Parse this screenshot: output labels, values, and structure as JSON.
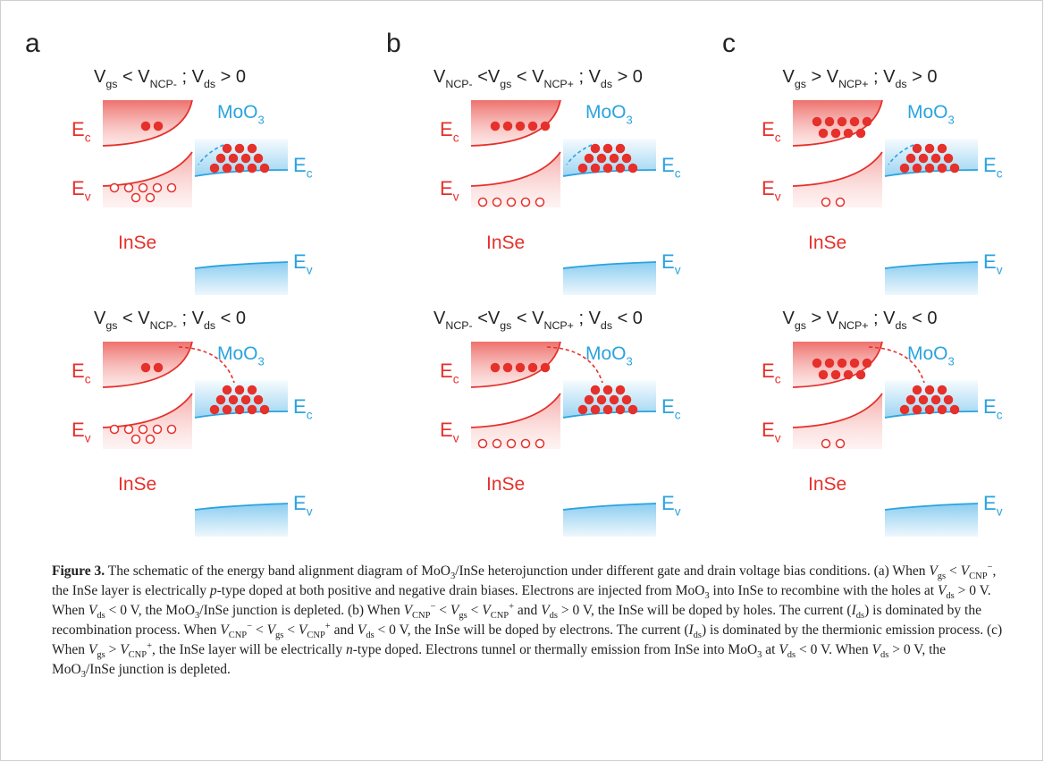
{
  "panels": [
    {
      "letter": "a",
      "diagrams": [
        {
          "condition": [
            {
              "text": "V"
            },
            {
              "sub": "gs"
            },
            {
              "text": " < V"
            },
            {
              "sub": "NCP-"
            },
            {
              "text": " ; V"
            },
            {
              "sub": "ds"
            },
            {
              "text": " > 0"
            }
          ]
        },
        {
          "condition": [
            {
              "text": "V"
            },
            {
              "sub": "gs"
            },
            {
              "text": " < V"
            },
            {
              "sub": "NCP-"
            },
            {
              "text": " ; V"
            },
            {
              "sub": "ds"
            },
            {
              "text": " < 0"
            }
          ]
        }
      ]
    },
    {
      "letter": "b",
      "diagrams": [
        {
          "condition": [
            {
              "text": "V"
            },
            {
              "sub": "NCP-"
            },
            {
              "text": " <V"
            },
            {
              "sub": "gs"
            },
            {
              "text": " < V"
            },
            {
              "sub": "NCP+"
            },
            {
              "text": " ; V"
            },
            {
              "sub": "ds"
            },
            {
              "text": " > 0"
            }
          ]
        },
        {
          "condition": [
            {
              "text": "V"
            },
            {
              "sub": "NCP-"
            },
            {
              "text": " <V"
            },
            {
              "sub": "gs"
            },
            {
              "text": " < V"
            },
            {
              "sub": "NCP+"
            },
            {
              "text": " ; V"
            },
            {
              "sub": "ds"
            },
            {
              "text": " < 0"
            }
          ]
        }
      ]
    },
    {
      "letter": "c",
      "diagrams": [
        {
          "condition": [
            {
              "text": "V"
            },
            {
              "sub": "gs"
            },
            {
              "text": " > V"
            },
            {
              "sub": "NCP+"
            },
            {
              "text": " ; V"
            },
            {
              "sub": "ds"
            },
            {
              "text": " > 0"
            }
          ]
        },
        {
          "condition": [
            {
              "text": "V"
            },
            {
              "sub": "gs"
            },
            {
              "text": " > V"
            },
            {
              "sub": "NCP+"
            },
            {
              "text": " ; V"
            },
            {
              "sub": "ds"
            },
            {
              "text": " < 0"
            }
          ]
        }
      ]
    }
  ],
  "band_labels": {
    "ec": [
      "E",
      "c"
    ],
    "ev": [
      "E",
      "v"
    ],
    "moo3": [
      "MoO",
      "3"
    ],
    "inse": "InSe"
  },
  "caption": {
    "runs": [
      {
        "text": "Figure 3.",
        "style": "bold"
      },
      {
        "text": " The schematic of the energy band alignment diagram of MoO"
      },
      {
        "text": "3",
        "style": "sub"
      },
      {
        "text": "/InSe heterojunction under different gate and drain voltage bias conditions. (a) When "
      },
      {
        "text": "V",
        "style": "italic"
      },
      {
        "text": "gs",
        "style": "sub"
      },
      {
        "text": " < "
      },
      {
        "text": "V",
        "style": "italic"
      },
      {
        "text": "CNP",
        "style": "sub"
      },
      {
        "text": "−",
        "style": "sup"
      },
      {
        "text": ", the InSe layer is electrically "
      },
      {
        "text": "p",
        "style": "italic"
      },
      {
        "text": "-type doped at both positive and negative drain biases. Electrons are injected from MoO"
      },
      {
        "text": "3",
        "style": "sub"
      },
      {
        "text": " into InSe to recombine with the holes at "
      },
      {
        "text": "V",
        "style": "italic"
      },
      {
        "text": "ds",
        "style": "sub"
      },
      {
        "text": " > 0 V. When "
      },
      {
        "text": "V",
        "style": "italic"
      },
      {
        "text": "ds",
        "style": "sub"
      },
      {
        "text": " < 0 V, the MoO"
      },
      {
        "text": "3",
        "style": "sub"
      },
      {
        "text": "/InSe junction is depleted. (b) When "
      },
      {
        "text": "V",
        "style": "italic"
      },
      {
        "text": "CNP",
        "style": "sub"
      },
      {
        "text": "−",
        "style": "sup"
      },
      {
        "text": " < "
      },
      {
        "text": "V",
        "style": "italic"
      },
      {
        "text": "gs",
        "style": "sub"
      },
      {
        "text": " < "
      },
      {
        "text": "V",
        "style": "italic"
      },
      {
        "text": "CNP",
        "style": "sub"
      },
      {
        "text": "+",
        "style": "sup"
      },
      {
        "text": " and "
      },
      {
        "text": "V",
        "style": "italic"
      },
      {
        "text": "ds",
        "style": "sub"
      },
      {
        "text": " > 0 V, the InSe will be doped by holes. The current ("
      },
      {
        "text": "I",
        "style": "italic"
      },
      {
        "text": "ds",
        "style": "sub"
      },
      {
        "text": ") is dominated by the recombination process. When "
      },
      {
        "text": "V",
        "style": "italic"
      },
      {
        "text": "CNP",
        "style": "sub"
      },
      {
        "text": "−",
        "style": "sup"
      },
      {
        "text": " < "
      },
      {
        "text": "V",
        "style": "italic"
      },
      {
        "text": "gs",
        "style": "sub"
      },
      {
        "text": " < "
      },
      {
        "text": "V",
        "style": "italic"
      },
      {
        "text": "CNP",
        "style": "sub"
      },
      {
        "text": "+",
        "style": "sup"
      },
      {
        "text": " and "
      },
      {
        "text": "V",
        "style": "italic"
      },
      {
        "text": "ds",
        "style": "sub"
      },
      {
        "text": " < 0 V, the InSe will be doped by electrons. The current ("
      },
      {
        "text": "I",
        "style": "italic"
      },
      {
        "text": "ds",
        "style": "sub"
      },
      {
        "text": ") is dominated by the thermionic emission process. (c) When "
      },
      {
        "text": "V",
        "style": "italic"
      },
      {
        "text": "gs",
        "style": "sub"
      },
      {
        "text": " > "
      },
      {
        "text": "V",
        "style": "italic"
      },
      {
        "text": "CNP",
        "style": "sub"
      },
      {
        "text": "+",
        "style": "sup"
      },
      {
        "text": ", the InSe layer will be electrically "
      },
      {
        "text": "n",
        "style": "italic"
      },
      {
        "text": "-type doped. Electrons tunnel or thermally emission from InSe into MoO"
      },
      {
        "text": "3",
        "style": "sub"
      },
      {
        "text": " at "
      },
      {
        "text": "V",
        "style": "italic"
      },
      {
        "text": "ds",
        "style": "sub"
      },
      {
        "text": " < 0 V. When "
      },
      {
        "text": "V",
        "style": "italic"
      },
      {
        "text": "ds",
        "style": "sub"
      },
      {
        "text": " > 0 V, the MoO"
      },
      {
        "text": "3",
        "style": "sub"
      },
      {
        "text": "/InSe junction is depleted."
      }
    ]
  }
}
